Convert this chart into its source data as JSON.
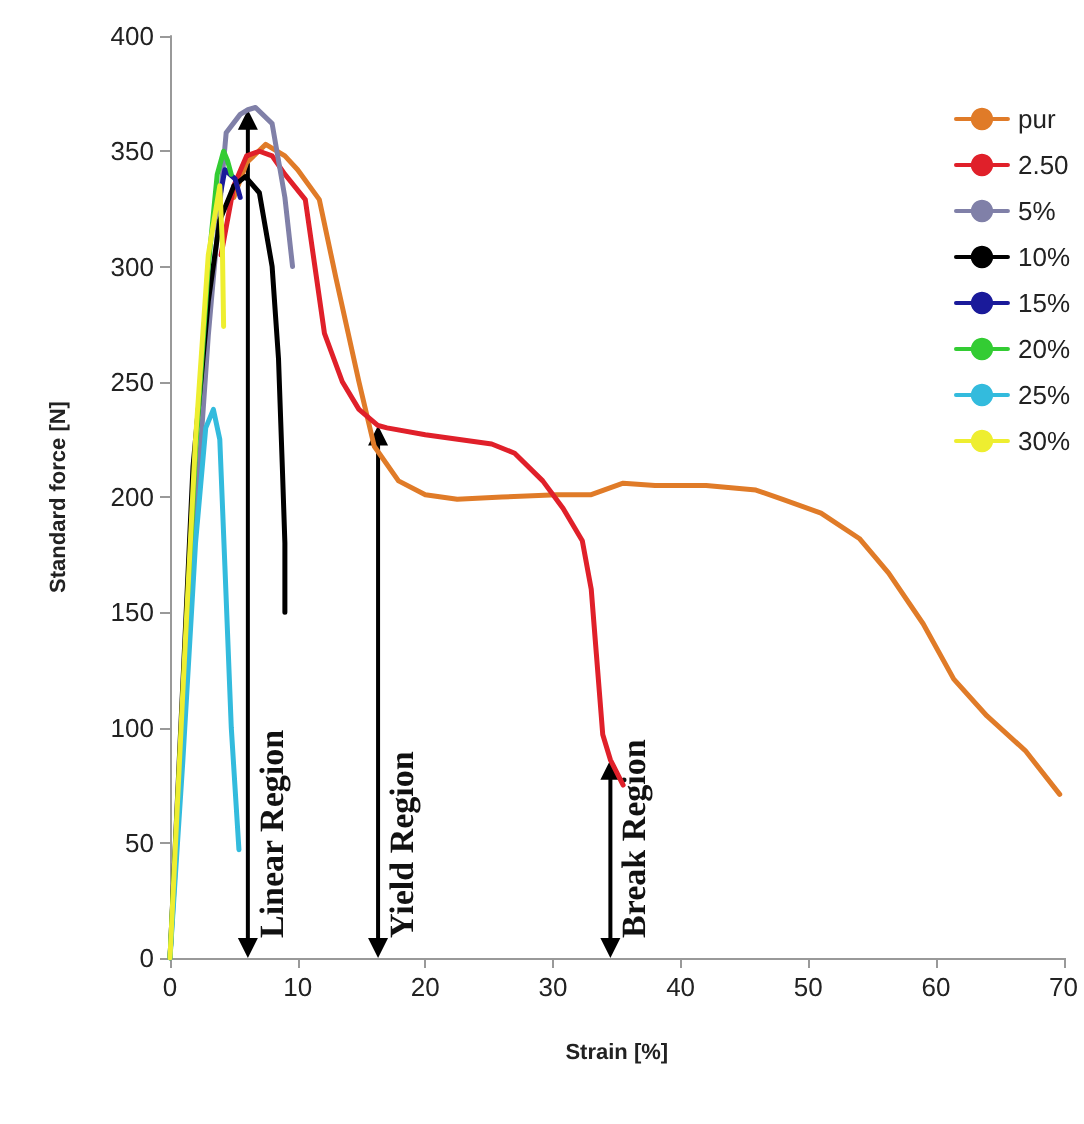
{
  "chart_data": {
    "type": "line",
    "xlabel": "Strain [%]",
    "ylabel": "Standard force [N]",
    "xlim": [
      0,
      70
    ],
    "xticks": [
      0,
      10,
      20,
      30,
      40,
      50,
      60,
      70
    ],
    "ylim": [
      0,
      400
    ],
    "yticks": [
      0,
      50,
      100,
      150,
      200,
      250,
      300,
      350,
      400
    ],
    "grid": false,
    "legend": "top right",
    "marker": "none",
    "line_style": "solid",
    "annotations": [
      {
        "text": "Linear Region",
        "x": 6.1,
        "y": 368
      },
      {
        "text": "Yield Region",
        "x": 16.3,
        "y": 231
      },
      {
        "text": "Break Region",
        "x": 34.5,
        "y": 86
      }
    ],
    "series": [
      {
        "name": "pur",
        "color": "#e07b28",
        "x": [
          5,
          6,
          7.5,
          9,
          10,
          11.7,
          13,
          14.8,
          16,
          17.9,
          20,
          22.5,
          26,
          30.3,
          33,
          35.5,
          38,
          42,
          45.9,
          48,
          51,
          54,
          56.3,
          59,
          61.4,
          64,
          67,
          69.7
        ],
        "values": [
          330,
          345,
          353,
          348,
          342,
          329,
          295,
          250,
          222,
          207,
          201,
          199,
          200,
          201,
          201,
          206,
          205,
          205,
          203,
          199,
          193,
          182,
          167,
          145,
          121,
          105,
          90,
          71
        ]
      },
      {
        "name": "2.50",
        "color": "#e0202a",
        "x": [
          4,
          5,
          6,
          7,
          8,
          9,
          10.6,
          12.1,
          13.5,
          14.8,
          16.3,
          17,
          20,
          25.2,
          27,
          29.2,
          30.8,
          32.3,
          33,
          33.4,
          33.9,
          34.5,
          35.5
        ],
        "values": [
          305,
          335,
          348,
          350,
          348,
          340,
          329,
          271,
          250,
          238,
          231,
          230,
          227,
          223,
          219,
          207,
          195,
          181,
          160,
          132,
          97,
          86,
          75
        ]
      },
      {
        "name": "5%",
        "color": "#8080a8",
        "x": [
          0,
          2,
          3,
          4.4,
          5.5,
          6.1,
          6.7,
          8,
          9,
          9.6
        ],
        "values": [
          0,
          190,
          270,
          358,
          366,
          368,
          369,
          362,
          330,
          300
        ]
      },
      {
        "name": "10%",
        "color": "#000000",
        "x": [
          0,
          1.8,
          3,
          3.9,
          5,
          5.9,
          7,
          8,
          8.5,
          8.8,
          9,
          9
        ],
        "values": [
          0,
          213,
          285,
          320,
          335,
          339,
          332,
          300,
          260,
          213,
          180,
          150
        ]
      },
      {
        "name": "15%",
        "color": "#1a1a9a",
        "x": [
          3.9,
          4.3,
          4.7,
          5.1,
          5.5
        ],
        "values": [
          330,
          342,
          340,
          338,
          330
        ]
      },
      {
        "name": "20%",
        "color": "#33cc33",
        "x": [
          0,
          1,
          2,
          3,
          3.7,
          4.2,
          4.5,
          4.8
        ],
        "values": [
          0,
          110,
          220,
          300,
          340,
          350,
          346,
          340
        ]
      },
      {
        "name": "25%",
        "color": "#33bbdd",
        "x": [
          0,
          1,
          2,
          2.8,
          3.4,
          3.9,
          4.3,
          4.8,
          5.4
        ],
        "values": [
          0,
          85,
          180,
          230,
          238,
          225,
          170,
          100,
          47
        ]
      },
      {
        "name": "30%",
        "color": "#eeee30",
        "x": [
          0,
          1,
          2,
          3,
          3.9,
          4.1,
          4.2
        ],
        "values": [
          0,
          115,
          225,
          305,
          335,
          310,
          274
        ]
      }
    ]
  }
}
